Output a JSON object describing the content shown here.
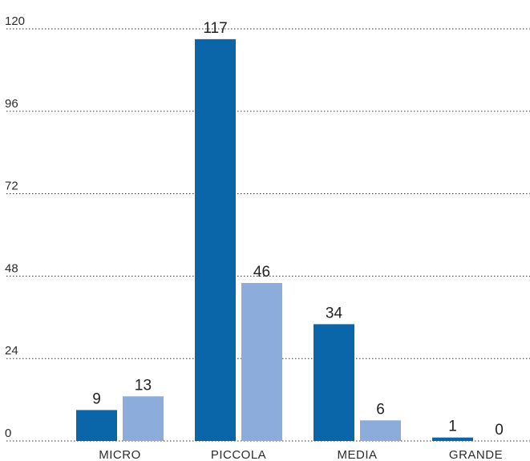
{
  "chart_data": {
    "type": "bar",
    "categories": [
      "MICRO",
      "PICCOLA",
      "MEDIA",
      "GRANDE"
    ],
    "series": [
      {
        "values": [
          9,
          117,
          34,
          1
        ],
        "color": "#0b66a9"
      },
      {
        "values": [
          13,
          46,
          6,
          0
        ],
        "color": "#8cacdb"
      }
    ],
    "yticks": [
      0,
      24,
      48,
      72,
      96,
      120
    ],
    "ylim": [
      0,
      120
    ],
    "grid": true,
    "legend": "none"
  }
}
